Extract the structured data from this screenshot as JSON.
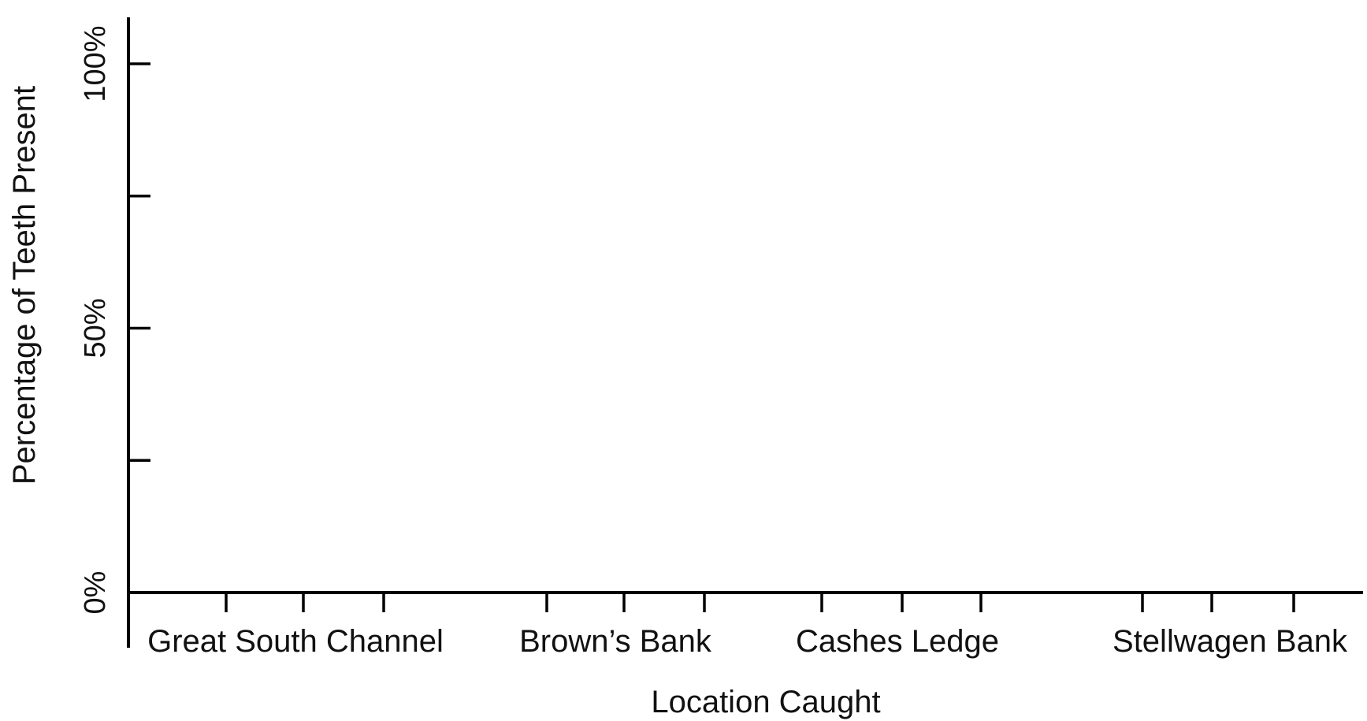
{
  "chart_data": {
    "type": "bar",
    "title": "",
    "xlabel": "Location Caught",
    "ylabel": "Percentage of Teeth Present",
    "categories": [
      "Great South Channel",
      "Brown’s Bank",
      "Cashes Ledge",
      "Stellwagen Bank"
    ],
    "bars_per_category": 3,
    "series": [],
    "ylim": [
      0,
      100
    ],
    "y_ticks": [
      0,
      25,
      50,
      75,
      100
    ],
    "y_tick_labels": [
      {
        "value": 0,
        "label": "0%"
      },
      {
        "value": 50,
        "label": "50%"
      },
      {
        "value": 100,
        "label": "100%"
      }
    ],
    "grid": false,
    "legend": "none"
  },
  "colors": {
    "axis": "#000000",
    "text": "#111111",
    "background": "#ffffff"
  }
}
